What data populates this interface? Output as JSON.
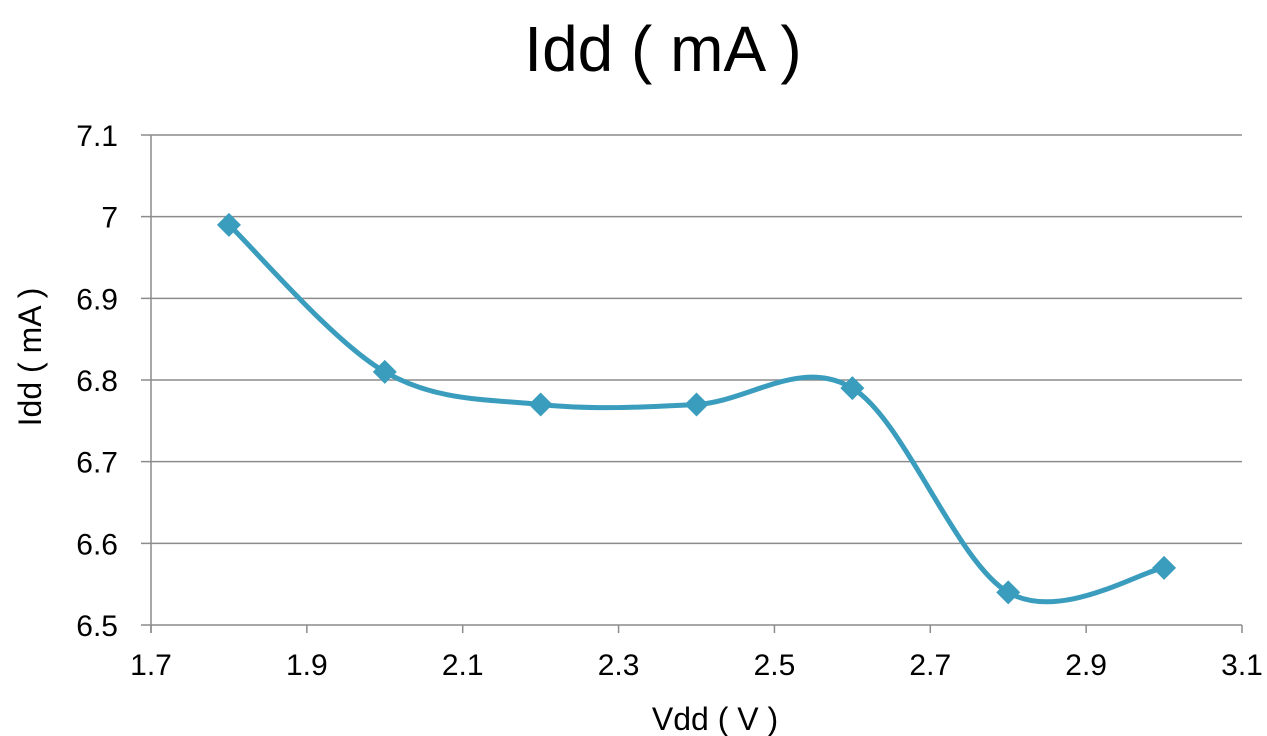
{
  "chart_data": {
    "type": "scatter",
    "title": "Idd ( mA )",
    "xlabel": "Vdd ( V )",
    "ylabel": "Idd ( mA )",
    "xlim": [
      1.7,
      3.1
    ],
    "ylim": [
      6.5,
      7.1
    ],
    "x_ticks": [
      "1.7",
      "1.9",
      "2.1",
      "2.3",
      "2.5",
      "2.7",
      "2.9",
      "3.1"
    ],
    "y_ticks": [
      "7.1",
      "7",
      "6.9",
      "6.8",
      "6.7",
      "6.6",
      "6.5"
    ],
    "grid": "horizontal",
    "marker": "diamond",
    "smooth": true,
    "series": [
      {
        "color": "#3a9dbd",
        "x": [
          1.8,
          2.0,
          2.2,
          2.4,
          2.6,
          2.8,
          3.0
        ],
        "y": [
          6.99,
          6.81,
          6.77,
          6.77,
          6.79,
          6.54,
          6.57
        ]
      }
    ]
  }
}
